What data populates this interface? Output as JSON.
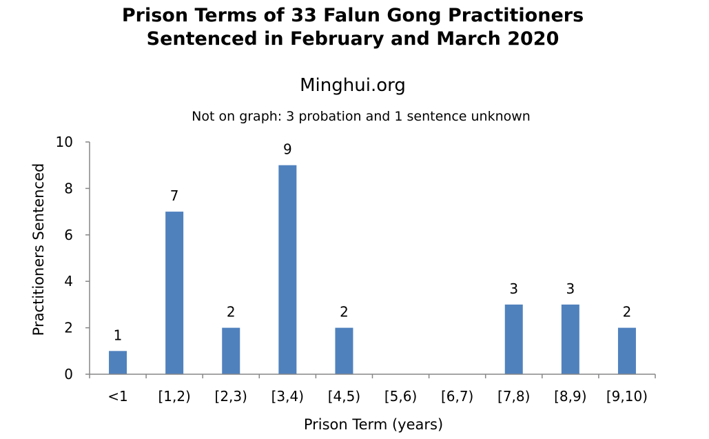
{
  "chart_data": {
    "type": "bar",
    "title_line1": "Prison Terms of 33 Falun Gong Practitioners",
    "title_line2": "Sentenced in February and March 2020",
    "subtitle": "Minghui.org",
    "note": "Not on graph: 3 probation and 1 sentence unknown",
    "xlabel": "Prison Term (years)",
    "ylabel": "Practitioners Sentenced",
    "categories": [
      "<1",
      "[1,2)",
      "[2,3)",
      "[3,4)",
      "[4,5)",
      "[5,6)",
      "[6,7)",
      "[7,8)",
      "[8,9)",
      "[9,10)"
    ],
    "values": [
      1,
      7,
      2,
      9,
      2,
      0,
      0,
      3,
      3,
      2
    ],
    "data_labels": [
      "1",
      "7",
      "2",
      "9",
      "2",
      "",
      "",
      "3",
      "3",
      "2"
    ],
    "ylim": [
      0,
      10
    ],
    "yticks": [
      "0",
      "2",
      "4",
      "6",
      "8",
      "10"
    ],
    "grid": false,
    "legend": "none",
    "bar_color": "#4f81bd"
  }
}
